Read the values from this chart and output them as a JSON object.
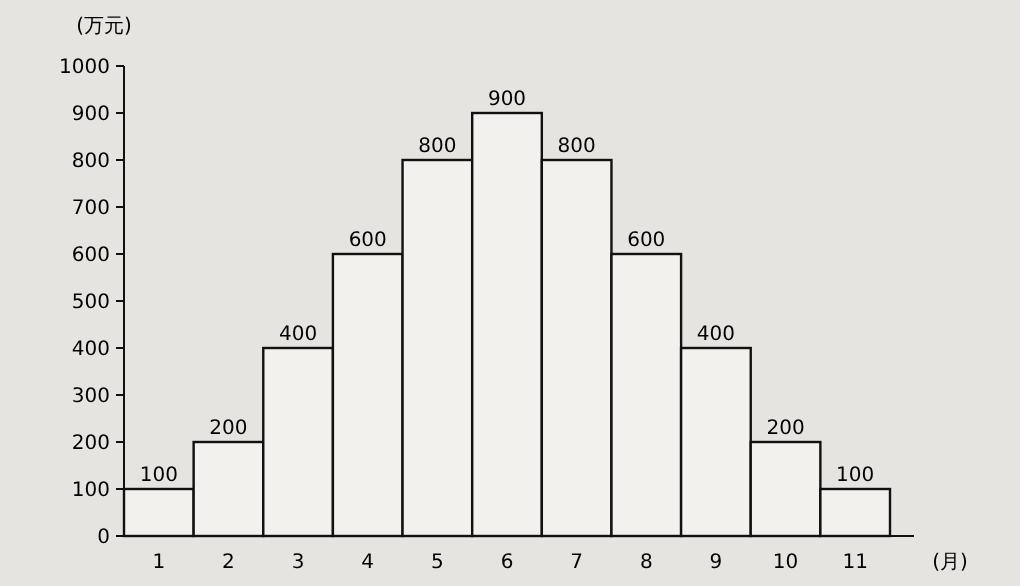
{
  "chart_data": {
    "type": "bar",
    "xlabel": "(月)",
    "ylabel": "(万元)",
    "categories": [
      "1",
      "2",
      "3",
      "4",
      "5",
      "6",
      "7",
      "8",
      "9",
      "10",
      "11"
    ],
    "values": [
      100,
      200,
      400,
      600,
      800,
      900,
      800,
      600,
      400,
      200,
      100
    ],
    "color": "#f2f1ee",
    "ylim": [
      0,
      1000
    ],
    "yticks": [
      0,
      100,
      200,
      300,
      400,
      500,
      600,
      700,
      800,
      900,
      1000
    ],
    "data_labels": true
  }
}
